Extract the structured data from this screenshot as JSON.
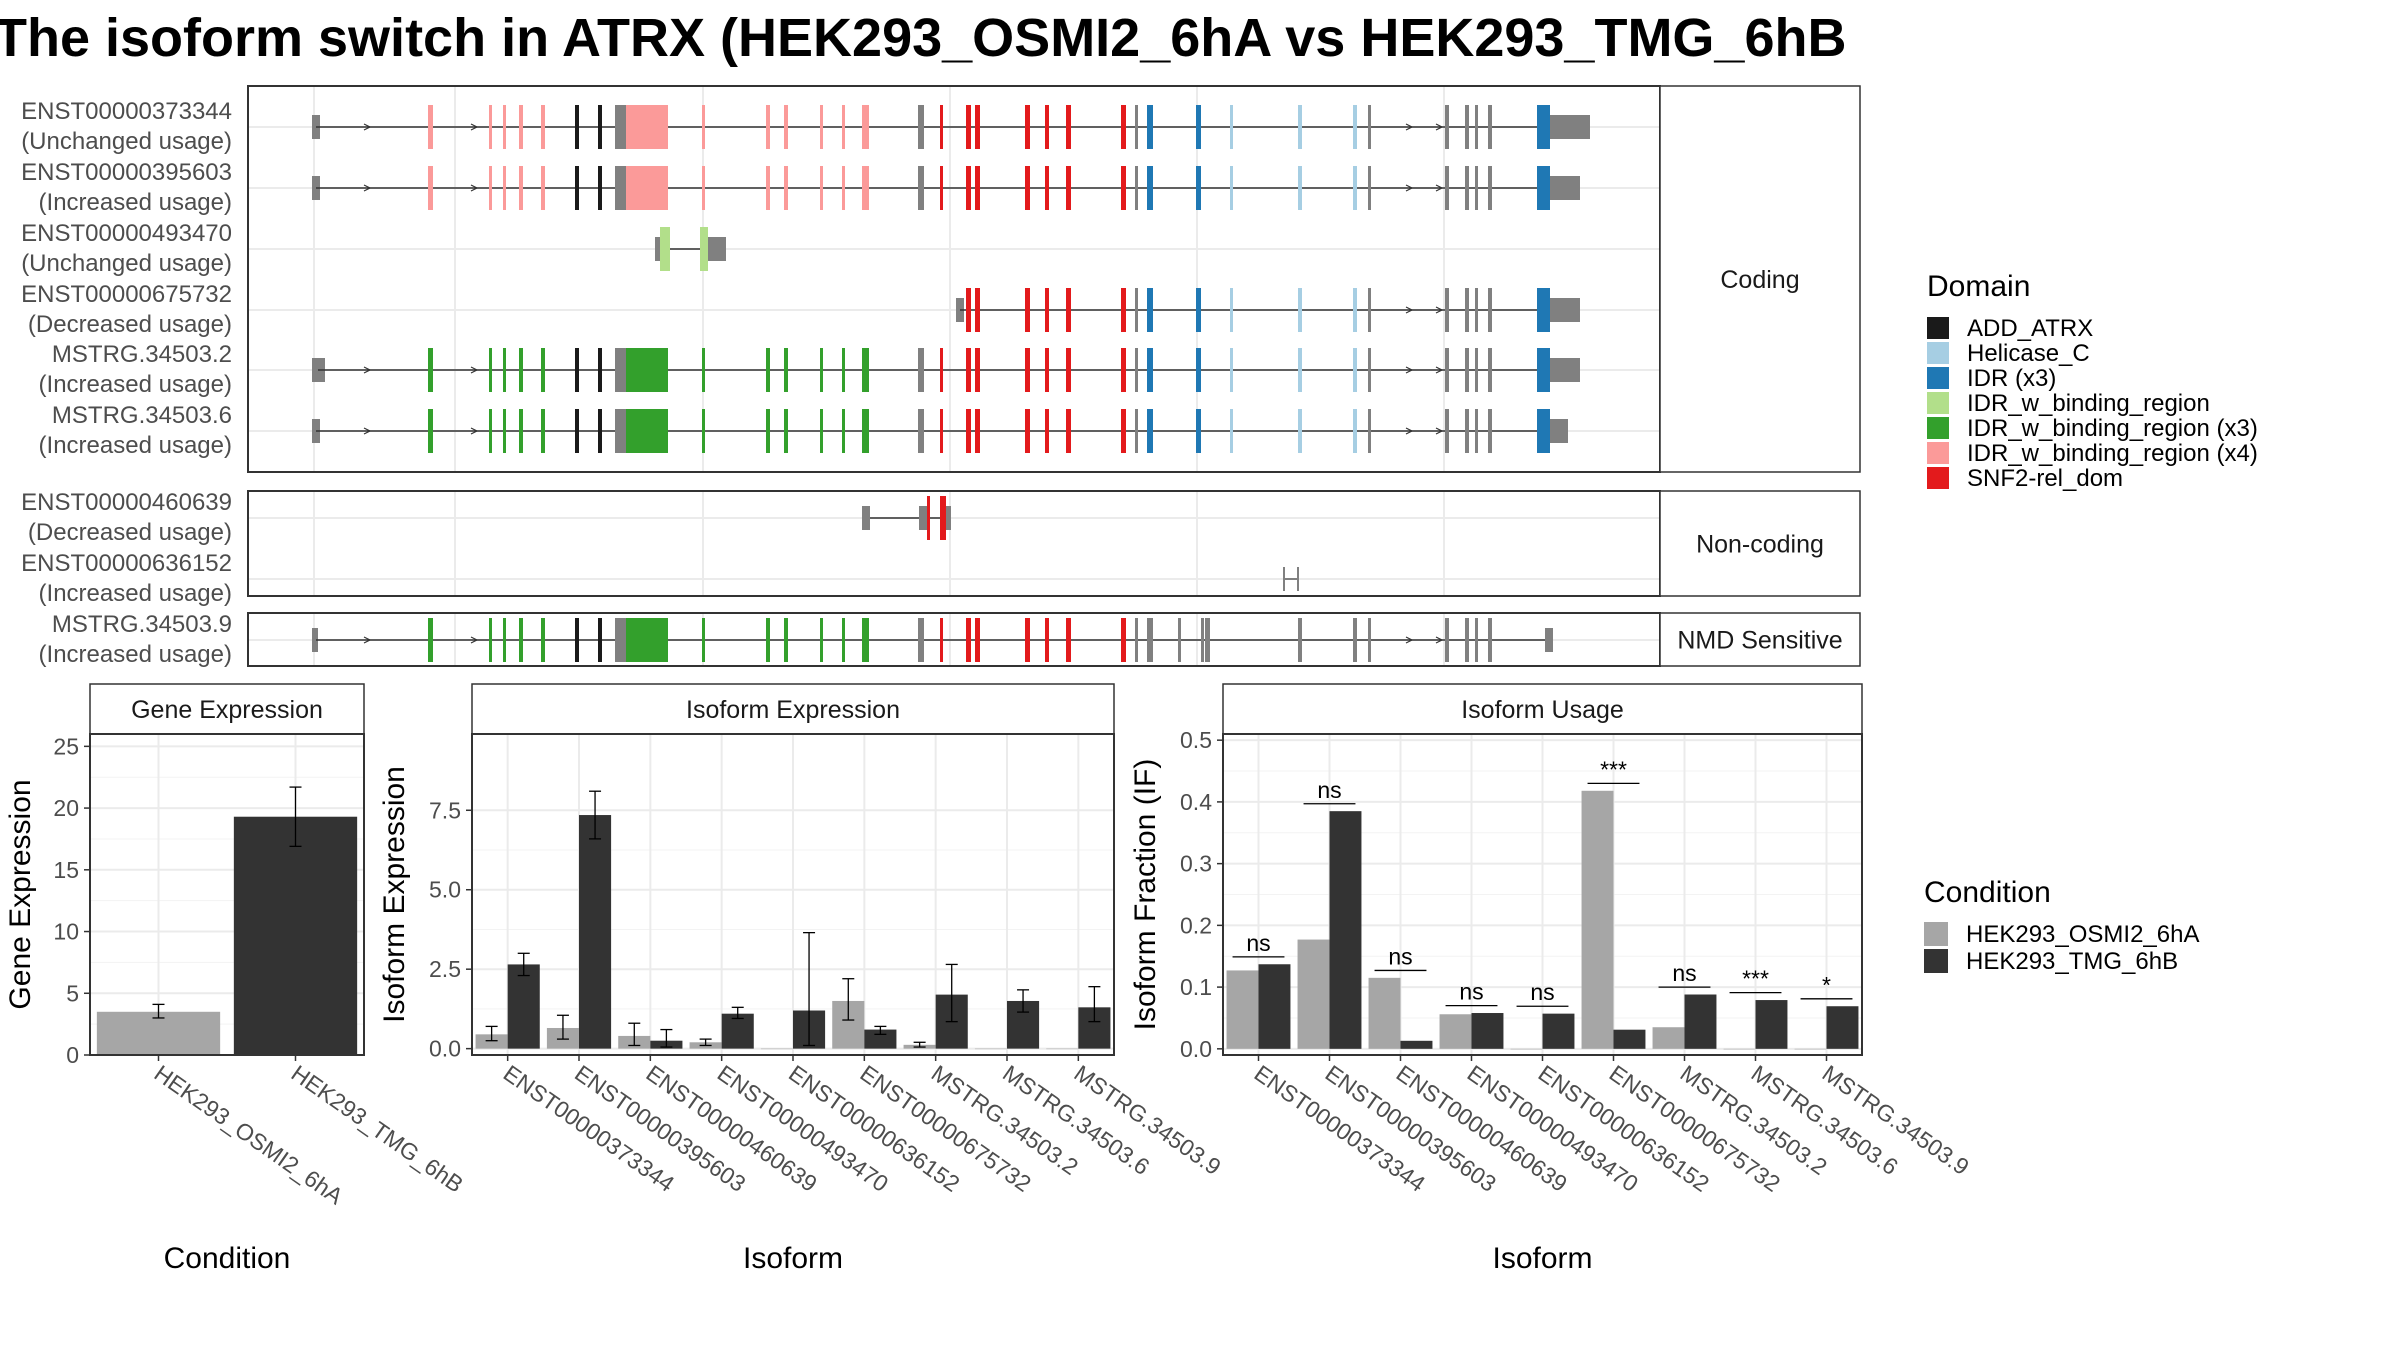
{
  "title": "The isoform switch in ATRX (HEK293_OSMI2_6hA vs HEK293_TMG_6hB",
  "structure": {
    "facets": [
      "Coding",
      "Non-coding",
      "NMD Sensitive"
    ],
    "rows": [
      {
        "id": "ENST00000373344",
        "usage": "(Unchanged usage)",
        "facet": 0
      },
      {
        "id": "ENST00000395603",
        "usage": "(Increased usage)",
        "facet": 0
      },
      {
        "id": "ENST00000493470",
        "usage": "(Unchanged usage)",
        "facet": 0
      },
      {
        "id": "ENST00000675732",
        "usage": "(Decreased usage)",
        "facet": 0
      },
      {
        "id": "MSTRG.34503.2",
        "usage": "(Increased usage)",
        "facet": 0
      },
      {
        "id": "MSTRG.34503.6",
        "usage": "(Increased usage)",
        "facet": 0
      },
      {
        "id": "ENST00000460639",
        "usage": "(Decreased usage)",
        "facet": 1
      },
      {
        "id": "ENST00000636152",
        "usage": "(Increased usage)",
        "facet": 1
      },
      {
        "id": "MSTRG.34503.9",
        "usage": "(Increased usage)",
        "facet": 2
      }
    ],
    "domain_legend_title": "Domain",
    "domains": [
      {
        "name": "ADD_ATRX",
        "color": "#1a1a1a"
      },
      {
        "name": "Helicase_C",
        "color": "#a6cee3"
      },
      {
        "name": "IDR (x3)",
        "color": "#1f78b4"
      },
      {
        "name": "IDR_w_binding_region",
        "color": "#b2df8a"
      },
      {
        "name": "IDR_w_binding_region (x3)",
        "color": "#33a02c"
      },
      {
        "name": "IDR_w_binding_region (x4)",
        "color": "#fb9a99"
      },
      {
        "name": "SNF2-rel_dom",
        "color": "#e31a1c"
      }
    ],
    "untranslated_color": "#808080"
  },
  "condition_legend": {
    "title": "Condition",
    "items": [
      {
        "name": "HEK293_OSMI2_6hA",
        "color": "#a6a6a6"
      },
      {
        "name": "HEK293_TMG_6hB",
        "color": "#333333"
      }
    ]
  },
  "chart_data": [
    {
      "type": "bar",
      "panel_title": "Gene Expression",
      "xlabel": "Condition",
      "ylabel": "Gene Expression",
      "categories": [
        "HEK293_OSMI2_6hA",
        "HEK293_TMG_6hB"
      ],
      "values": [
        3.5,
        19.3
      ],
      "errors": [
        [
          3.0,
          4.1
        ],
        [
          16.9,
          21.7
        ]
      ],
      "colors": [
        "#a6a6a6",
        "#333333"
      ],
      "ylim": [
        0,
        26
      ],
      "yticks": [
        0,
        5,
        10,
        15,
        20,
        25
      ],
      "ytick_labels": [
        "0",
        "5",
        "10",
        "15",
        "20",
        "25"
      ]
    },
    {
      "type": "bar",
      "panel_title": "Isoform Expression",
      "xlabel": "Isoform",
      "ylabel": "Isoform Expression",
      "categories": [
        "ENST00000373344",
        "ENST00000395603",
        "ENST00000460639",
        "ENST00000493470",
        "ENST00000636152",
        "ENST00000675732",
        "MSTRG.34503.2",
        "MSTRG.34503.6",
        "MSTRG.34503.9"
      ],
      "series": [
        {
          "name": "HEK293_OSMI2_6hA",
          "values": [
            0.45,
            0.65,
            0.4,
            0.2,
            0.0,
            1.5,
            0.12,
            0.0,
            0.0
          ],
          "errors": [
            [
              0.25,
              0.7
            ],
            [
              0.3,
              1.05
            ],
            [
              0.1,
              0.8
            ],
            [
              0.1,
              0.3
            ],
            [
              0,
              0
            ],
            [
              0.9,
              2.2
            ],
            [
              0.05,
              0.2
            ],
            [
              0,
              0
            ],
            [
              0,
              0
            ]
          ]
        },
        {
          "name": "HEK293_TMG_6hB",
          "values": [
            2.65,
            7.35,
            0.25,
            1.1,
            1.2,
            0.6,
            1.7,
            1.5,
            1.3
          ],
          "errors": [
            [
              2.3,
              3.0
            ],
            [
              6.6,
              8.1
            ],
            [
              0.05,
              0.6
            ],
            [
              0.95,
              1.3
            ],
            [
              0.1,
              3.65
            ],
            [
              0.45,
              0.7
            ],
            [
              0.85,
              2.65
            ],
            [
              1.15,
              1.85
            ],
            [
              0.85,
              1.95
            ]
          ]
        }
      ],
      "ylim": [
        -0.2,
        9.9
      ],
      "yticks": [
        0.0,
        2.5,
        5.0,
        7.5
      ],
      "ytick_labels": [
        "0.0",
        "2.5",
        "5.0",
        "7.5"
      ]
    },
    {
      "type": "bar",
      "panel_title": "Isoform Usage",
      "xlabel": "Isoform",
      "ylabel": "Isoform Fraction (IF)",
      "categories": [
        "ENST00000373344",
        "ENST00000395603",
        "ENST00000460639",
        "ENST00000493470",
        "ENST00000636152",
        "ENST00000675732",
        "MSTRG.34503.2",
        "MSTRG.34503.6",
        "MSTRG.34503.9"
      ],
      "series": [
        {
          "name": "HEK293_OSMI2_6hA",
          "values": [
            0.127,
            0.177,
            0.115,
            0.056,
            0.0,
            0.418,
            0.035,
            0.0,
            0.0
          ]
        },
        {
          "name": "HEK293_TMG_6hB",
          "values": [
            0.137,
            0.385,
            0.013,
            0.058,
            0.057,
            0.031,
            0.088,
            0.079,
            0.069
          ]
        }
      ],
      "significance": [
        "ns",
        "ns",
        "ns",
        "ns",
        "ns",
        "***",
        "ns",
        "***",
        "*"
      ],
      "ylim": [
        -0.01,
        0.51
      ],
      "yticks": [
        0.0,
        0.1,
        0.2,
        0.3,
        0.4,
        0.5
      ],
      "ytick_labels": [
        "0.0",
        "0.1",
        "0.2",
        "0.3",
        "0.4",
        "0.5"
      ]
    }
  ]
}
